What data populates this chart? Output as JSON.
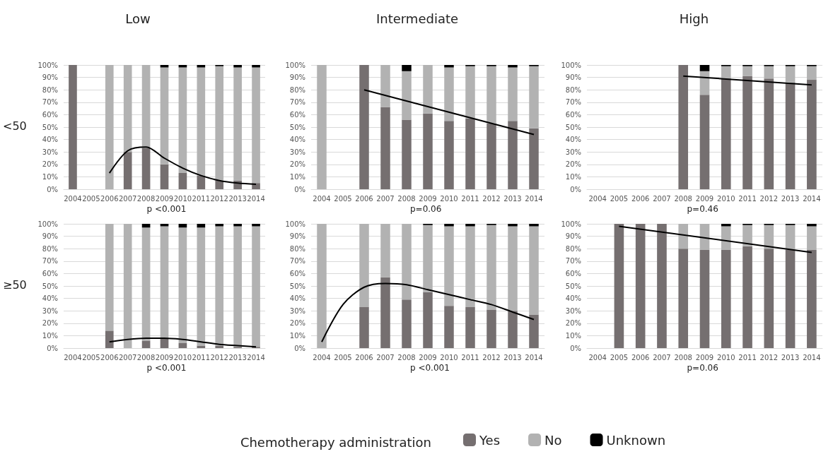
{
  "chart_data": [
    {
      "type": "bar",
      "title": "Low",
      "ylabel": "<50",
      "stacked": true,
      "grid": "y",
      "marker": "none",
      "annotations": [
        "p <0.001"
      ],
      "categories": [
        "2004",
        "2005",
        "2006",
        "2007",
        "2008",
        "2009",
        "2010",
        "2011",
        "2012",
        "2013",
        "2014"
      ],
      "ylim": [
        0,
        100
      ],
      "yticks": [
        {
          "value": 0,
          "label": "0%"
        },
        {
          "value": 10,
          "label": "10%"
        },
        {
          "value": 20,
          "label": "20%"
        },
        {
          "value": 30,
          "label": "30%"
        },
        {
          "value": 40,
          "label": "40%"
        },
        {
          "value": 50,
          "label": "50%"
        },
        {
          "value": 60,
          "label": "60%"
        },
        {
          "value": 70,
          "label": "70%"
        },
        {
          "value": 80,
          "label": "80%"
        },
        {
          "value": 90,
          "label": "90%"
        },
        {
          "value": 100,
          "label": "100%"
        }
      ],
      "series": [
        {
          "color": "#756f70",
          "values": [
            100,
            null,
            0,
            30,
            33,
            20,
            13,
            11,
            7,
            7,
            5
          ]
        },
        {
          "color": "#b2b2b2",
          "values": [
            0,
            null,
            100,
            70,
            67,
            78,
            85,
            87,
            92,
            91,
            93
          ]
        },
        {
          "color": "#000000",
          "values": [
            0,
            null,
            0,
            0,
            0,
            2,
            2,
            2,
            1,
            2,
            2
          ]
        },
        {
          "type": "line",
          "color": "#000000",
          "values": [
            null,
            null,
            13,
            31,
            34,
            25,
            17,
            11,
            7,
            5,
            4
          ]
        }
      ]
    },
    {
      "type": "bar",
      "title": "Intermediate",
      "stacked": true,
      "grid": "y",
      "marker": "none",
      "annotations": [
        "p=0.06"
      ],
      "categories": [
        "2004",
        "2005",
        "2006",
        "2007",
        "2008",
        "2009",
        "2010",
        "2011",
        "2012",
        "2013",
        "2014"
      ],
      "ylim": [
        0,
        100
      ],
      "yticks": [
        {
          "value": 0,
          "label": "0%"
        },
        {
          "value": 10,
          "label": "10%"
        },
        {
          "value": 20,
          "label": "20%"
        },
        {
          "value": 30,
          "label": "30%"
        },
        {
          "value": 40,
          "label": "40%"
        },
        {
          "value": 50,
          "label": "50%"
        },
        {
          "value": 60,
          "label": "60%"
        },
        {
          "value": 70,
          "label": "70%"
        },
        {
          "value": 80,
          "label": "80%"
        },
        {
          "value": 90,
          "label": "90%"
        },
        {
          "value": 100,
          "label": "100%"
        }
      ],
      "series": [
        {
          "color": "#756f70",
          "values": [
            0,
            null,
            100,
            66,
            56,
            61,
            55,
            57,
            53,
            55,
            49
          ]
        },
        {
          "color": "#b2b2b2",
          "values": [
            100,
            null,
            0,
            34,
            39,
            39,
            43,
            42,
            46,
            43,
            50
          ]
        },
        {
          "color": "#000000",
          "values": [
            0,
            null,
            0,
            0,
            5,
            0,
            2,
            1,
            1,
            2,
            1
          ]
        },
        {
          "type": "line",
          "color": "#000000",
          "values": [
            null,
            null,
            80,
            null,
            null,
            null,
            null,
            null,
            null,
            null,
            44
          ]
        }
      ]
    },
    {
      "type": "bar",
      "title": "High",
      "stacked": true,
      "grid": "y",
      "marker": "none",
      "annotations": [
        "p=0.46"
      ],
      "categories": [
        "2004",
        "2005",
        "2006",
        "2007",
        "2008",
        "2009",
        "2010",
        "2011",
        "2012",
        "2013",
        "2014"
      ],
      "ylim": [
        0,
        100
      ],
      "yticks": [
        {
          "value": 0,
          "label": "0%"
        },
        {
          "value": 10,
          "label": "10%"
        },
        {
          "value": 20,
          "label": "20%"
        },
        {
          "value": 30,
          "label": "30%"
        },
        {
          "value": 40,
          "label": "40%"
        },
        {
          "value": 50,
          "label": "50%"
        },
        {
          "value": 60,
          "label": "60%"
        },
        {
          "value": 70,
          "label": "70%"
        },
        {
          "value": 80,
          "label": "80%"
        },
        {
          "value": 90,
          "label": "90%"
        },
        {
          "value": 100,
          "label": "100%"
        }
      ],
      "series": [
        {
          "color": "#756f70",
          "values": [
            null,
            null,
            null,
            null,
            100,
            76,
            89,
            91,
            89,
            86,
            88
          ]
        },
        {
          "color": "#b2b2b2",
          "values": [
            null,
            null,
            null,
            null,
            0,
            19,
            10,
            8,
            10,
            13,
            11
          ]
        },
        {
          "color": "#000000",
          "values": [
            null,
            null,
            null,
            null,
            0,
            5,
            1,
            1,
            1,
            1,
            1
          ]
        },
        {
          "type": "line",
          "color": "#000000",
          "values": [
            null,
            null,
            null,
            null,
            91,
            null,
            null,
            null,
            null,
            null,
            84
          ]
        }
      ]
    },
    {
      "type": "bar",
      "ylabel": "≥50",
      "stacked": true,
      "grid": "y",
      "marker": "none",
      "annotations": [
        "p <0.001"
      ],
      "categories": [
        "2004",
        "2005",
        "2006",
        "2007",
        "2008",
        "2009",
        "2010",
        "2011",
        "2012",
        "2013",
        "2014"
      ],
      "ylim": [
        0,
        100
      ],
      "yticks": [
        {
          "value": 0,
          "label": "0%"
        },
        {
          "value": 10,
          "label": "10%"
        },
        {
          "value": 20,
          "label": "20%"
        },
        {
          "value": 30,
          "label": "30%"
        },
        {
          "value": 40,
          "label": "40%"
        },
        {
          "value": 50,
          "label": "50%"
        },
        {
          "value": 60,
          "label": "60%"
        },
        {
          "value": 70,
          "label": "70%"
        },
        {
          "value": 80,
          "label": "80%"
        },
        {
          "value": 90,
          "label": "90%"
        },
        {
          "value": 100,
          "label": "100%"
        }
      ],
      "series": [
        {
          "color": "#756f70",
          "values": [
            null,
            null,
            14,
            0,
            6,
            8,
            4,
            2,
            2,
            1,
            1
          ]
        },
        {
          "color": "#b2b2b2",
          "values": [
            null,
            null,
            86,
            100,
            91,
            90,
            93,
            95,
            96,
            97,
            97
          ]
        },
        {
          "color": "#000000",
          "values": [
            null,
            null,
            0,
            0,
            3,
            2,
            3,
            3,
            2,
            2,
            2
          ]
        },
        {
          "type": "line",
          "color": "#000000",
          "values": [
            null,
            null,
            5,
            7,
            8,
            8,
            7,
            5,
            3,
            2,
            1
          ]
        }
      ]
    },
    {
      "type": "bar",
      "stacked": true,
      "grid": "y",
      "marker": "none",
      "annotations": [
        "p <0.001"
      ],
      "legend": "bottom",
      "legend_title": "Chemotherapy administration",
      "categories": [
        "2004",
        "2005",
        "2006",
        "2007",
        "2008",
        "2009",
        "2010",
        "2011",
        "2012",
        "2013",
        "2014"
      ],
      "ylim": [
        0,
        100
      ],
      "yticks": [
        {
          "value": 0,
          "label": "0%"
        },
        {
          "value": 10,
          "label": "10%"
        },
        {
          "value": 20,
          "label": "20%"
        },
        {
          "value": 30,
          "label": "30%"
        },
        {
          "value": 40,
          "label": "40%"
        },
        {
          "value": 50,
          "label": "50%"
        },
        {
          "value": 60,
          "label": "60%"
        },
        {
          "value": 70,
          "label": "70%"
        },
        {
          "value": 80,
          "label": "80%"
        },
        {
          "value": 90,
          "label": "90%"
        },
        {
          "value": 100,
          "label": "100%"
        }
      ],
      "series": [
        {
          "name": "Yes",
          "color": "#756f70",
          "values": [
            0,
            null,
            33,
            57,
            39,
            45,
            34,
            33,
            31,
            30,
            27
          ]
        },
        {
          "name": "No",
          "color": "#b2b2b2",
          "values": [
            100,
            null,
            67,
            43,
            61,
            54,
            64,
            65,
            68,
            68,
            71
          ]
        },
        {
          "name": "Unknown",
          "color": "#000000",
          "values": [
            0,
            null,
            0,
            0,
            0,
            1,
            2,
            2,
            1,
            2,
            2
          ]
        },
        {
          "type": "line",
          "color": "#000000",
          "values": [
            5,
            35,
            49,
            52,
            51,
            47,
            43,
            39,
            35,
            29,
            23
          ]
        }
      ]
    },
    {
      "type": "bar",
      "stacked": true,
      "grid": "y",
      "marker": "none",
      "annotations": [
        "p=0.06"
      ],
      "categories": [
        "2004",
        "2005",
        "2006",
        "2007",
        "2008",
        "2009",
        "2010",
        "2011",
        "2012",
        "2013",
        "2014"
      ],
      "ylim": [
        0,
        100
      ],
      "yticks": [
        {
          "value": 0,
          "label": "0%"
        },
        {
          "value": 10,
          "label": "10%"
        },
        {
          "value": 20,
          "label": "20%"
        },
        {
          "value": 30,
          "label": "30%"
        },
        {
          "value": 40,
          "label": "40%"
        },
        {
          "value": 50,
          "label": "50%"
        },
        {
          "value": 60,
          "label": "60%"
        },
        {
          "value": 70,
          "label": "70%"
        },
        {
          "value": 80,
          "label": "80%"
        },
        {
          "value": 90,
          "label": "90%"
        },
        {
          "value": 100,
          "label": "100%"
        }
      ],
      "series": [
        {
          "color": "#756f70",
          "values": [
            null,
            100,
            100,
            100,
            80,
            79,
            79,
            82,
            80,
            79,
            79
          ]
        },
        {
          "color": "#b2b2b2",
          "values": [
            null,
            0,
            0,
            0,
            20,
            21,
            19,
            17,
            19,
            20,
            19
          ]
        },
        {
          "color": "#000000",
          "values": [
            null,
            0,
            0,
            0,
            0,
            0,
            2,
            1,
            1,
            1,
            2
          ]
        },
        {
          "type": "line",
          "color": "#000000",
          "values": [
            null,
            98,
            null,
            null,
            null,
            null,
            null,
            null,
            null,
            null,
            77
          ]
        }
      ]
    }
  ]
}
